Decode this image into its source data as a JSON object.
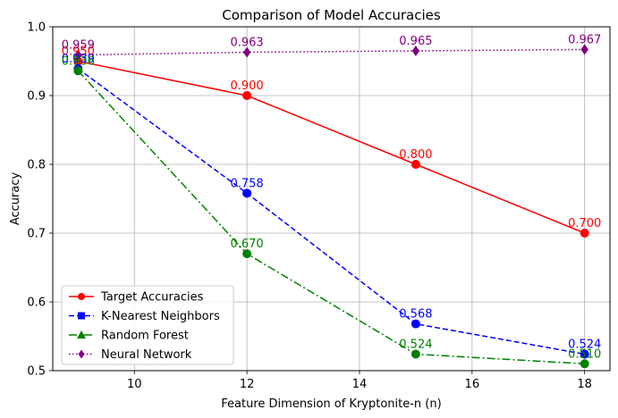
{
  "chart_data": {
    "type": "line",
    "title": "Comparison of Model Accuracies",
    "xlabel": "Feature Dimension of Kryptonite-n (n)",
    "ylabel": "Accuracy",
    "xlim": [
      8.55,
      18.45
    ],
    "ylim": [
      0.5,
      1.0
    ],
    "xticks": [
      10,
      12,
      14,
      16,
      18
    ],
    "yticks": [
      0.5,
      0.6,
      0.7,
      0.8,
      0.9,
      1.0
    ],
    "xtick_labels": [
      "10",
      "12",
      "14",
      "16",
      "18"
    ],
    "ytick_labels": [
      "0.5",
      "0.6",
      "0.7",
      "0.8",
      "0.9",
      "1.0"
    ],
    "grid": true,
    "legend_position": "lower-left",
    "x": [
      9,
      12,
      15,
      18
    ],
    "series": [
      {
        "name": "Target Accuracies",
        "values": [
          0.95,
          0.9,
          0.8,
          0.7
        ],
        "labels": [
          "0.950",
          "0.900",
          "0.800",
          "0.700"
        ],
        "color": "#ff0000",
        "line_style": "solid",
        "marker": "circle"
      },
      {
        "name": "K-Nearest Neighbors",
        "values": [
          0.939,
          0.758,
          0.568,
          0.524
        ],
        "labels": [
          "0.939",
          "0.758",
          "0.568",
          "0.524"
        ],
        "color": "#0000ff",
        "line_style": "dashed",
        "marker": "square"
      },
      {
        "name": "Random Forest",
        "values": [
          0.936,
          0.67,
          0.524,
          0.51
        ],
        "labels": [
          "0.936",
          "0.670",
          "0.524",
          "0.510"
        ],
        "color": "#008000",
        "line_style": "dashdot",
        "marker": "triangle"
      },
      {
        "name": "Neural Network",
        "values": [
          0.959,
          0.963,
          0.965,
          0.967
        ],
        "labels": [
          "0.959",
          "0.963",
          "0.965",
          "0.967"
        ],
        "color": "#800080",
        "line_style": "dotted",
        "marker": "diamond"
      }
    ]
  }
}
